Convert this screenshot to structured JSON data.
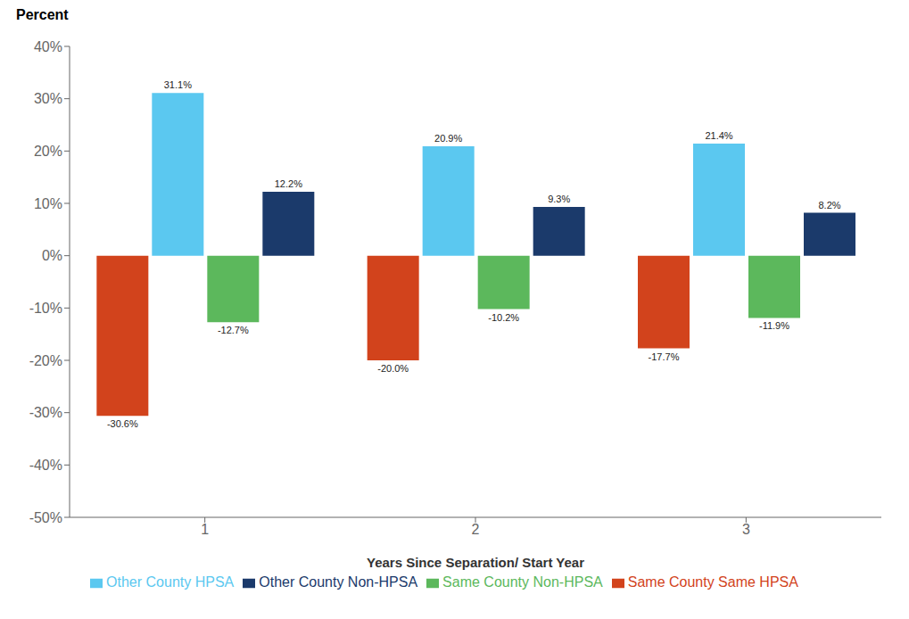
{
  "chart_data": {
    "type": "bar",
    "ylabel": "Percent",
    "xlabel": "Years Since Separation/ Start Year",
    "categories": [
      "1",
      "2",
      "3"
    ],
    "series": [
      {
        "name": "Same County Same HPSA",
        "color": "#D2431C",
        "values": [
          -30.6,
          -20.0,
          -17.7
        ],
        "value_labels": [
          "-30.6%",
          "-20.0%",
          "-17.7%"
        ]
      },
      {
        "name": "Other County HPSA",
        "color": "#5BC8F0",
        "values": [
          31.1,
          20.9,
          21.4
        ],
        "value_labels": [
          "31.1%",
          "20.9%",
          "21.4%"
        ]
      },
      {
        "name": "Same County Non-HPSA",
        "color": "#5CB85C",
        "values": [
          -12.7,
          -10.2,
          -11.9
        ],
        "value_labels": [
          "-12.7%",
          "-10.2%",
          "-11.9%"
        ]
      },
      {
        "name": "Other County Non-HPSA",
        "color": "#1B3A6B",
        "values": [
          12.2,
          9.3,
          8.2
        ],
        "value_labels": [
          "12.2%",
          "9.3%",
          "8.2%"
        ]
      }
    ],
    "ylim": [
      -50,
      40
    ],
    "yticks": [
      {
        "value": -50,
        "label": "-50%"
      },
      {
        "value": -40,
        "label": "-40%"
      },
      {
        "value": -30,
        "label": "-30%"
      },
      {
        "value": -20,
        "label": "-20%"
      },
      {
        "value": -10,
        "label": "-10%"
      },
      {
        "value": 0,
        "label": "0%"
      },
      {
        "value": 10,
        "label": "10%"
      },
      {
        "value": 20,
        "label": "20%"
      },
      {
        "value": 30,
        "label": "30%"
      },
      {
        "value": 40,
        "label": "40%"
      }
    ],
    "grid": false,
    "legend": "bottom",
    "data_labels": true
  }
}
